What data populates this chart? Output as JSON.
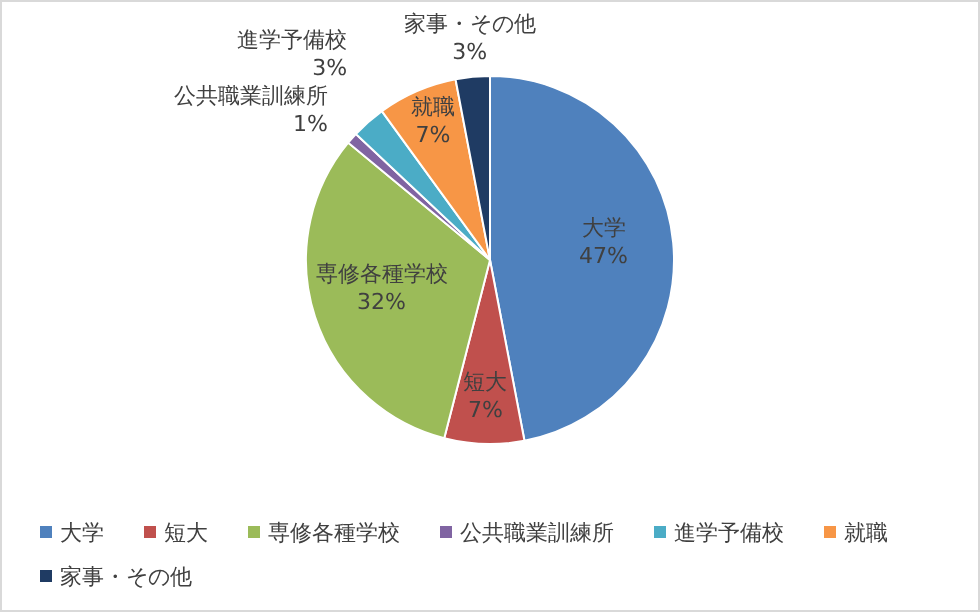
{
  "chart_data": {
    "type": "pie",
    "categories": [
      "大学",
      "短大",
      "専修各種学校",
      "公共職業訓練所",
      "進学予備校",
      "就職",
      "家事・その他"
    ],
    "values": [
      47,
      7,
      32,
      1,
      3,
      7,
      3
    ],
    "colors": [
      "#4f81bd",
      "#c0504d",
      "#9bbb59",
      "#8064a2",
      "#4bacc6",
      "#f79646",
      "#1f3b63"
    ],
    "value_labels": [
      "47%",
      "7%",
      "32%",
      "1%",
      "3%",
      "7%",
      "3%"
    ],
    "legend": "bottom"
  }
}
